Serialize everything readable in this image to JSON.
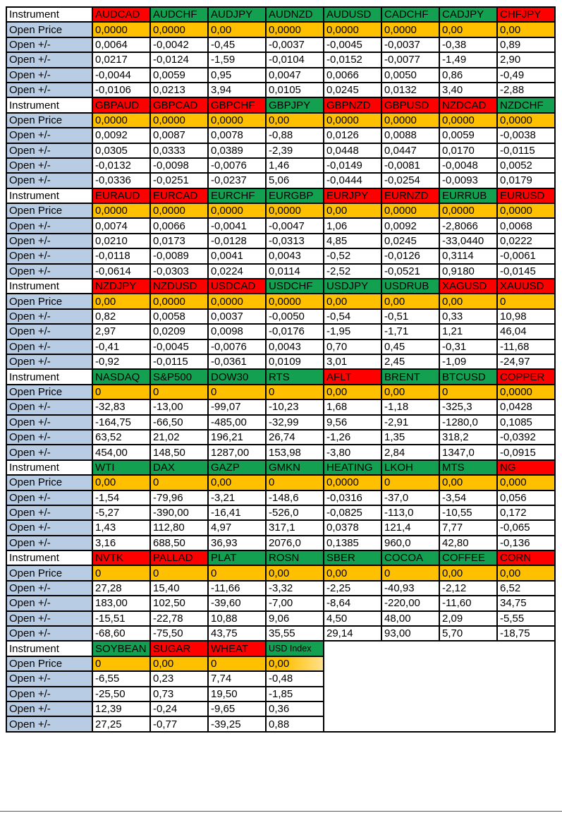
{
  "colors": {
    "red": "#FF0000",
    "green": "#13A051",
    "orange": "#FFC000",
    "orange_fade": "#FFE08A",
    "label_blue": "#B8CCE4",
    "grid": "#000000"
  },
  "row_labels": {
    "instrument": "Instrument",
    "open_price": "Open Price",
    "open_change": "Open +/-"
  },
  "table": {
    "blocks": [
      {
        "headers": [
          {
            "text": "AUDCAD",
            "color": "red"
          },
          {
            "text": "AUDCHF",
            "color": "green"
          },
          {
            "text": "AUDJPY",
            "color": "green"
          },
          {
            "text": "AUDNZD",
            "color": "green"
          },
          {
            "text": "AUDUSD",
            "color": "green"
          },
          {
            "text": "CADCHF",
            "color": "green"
          },
          {
            "text": "CADJPY",
            "color": "green"
          },
          {
            "text": "CHFJPY",
            "color": "red"
          }
        ],
        "open_price": [
          "0,0000",
          "0,0000",
          "0,00",
          "0,0000",
          "0,0000",
          "0,0000",
          "0,00",
          "0,00"
        ],
        "changes": [
          [
            "0,0064",
            "-0,0042",
            "-0,45",
            "-0,0037",
            "-0,0045",
            "-0,0037",
            "-0,38",
            "0,89"
          ],
          [
            "0,0217",
            "-0,0124",
            "-1,59",
            "-0,0104",
            "-0,0152",
            "-0,0077",
            "-1,49",
            "2,90"
          ],
          [
            "-0,0044",
            "0,0059",
            "0,95",
            "0,0047",
            "0,0066",
            "0,0050",
            "0,86",
            "-0,49"
          ],
          [
            "-0,0106",
            "0,0213",
            "3,94",
            "0,0105",
            "0,0245",
            "0,0132",
            "3,40",
            "-2,88"
          ]
        ]
      },
      {
        "headers": [
          {
            "text": "GBPAUD",
            "color": "red"
          },
          {
            "text": "GBPCAD",
            "color": "red"
          },
          {
            "text": "GBPCHF",
            "color": "red"
          },
          {
            "text": "GBPJPY",
            "color": "green"
          },
          {
            "text": "GBPNZD",
            "color": "red"
          },
          {
            "text": "GBPUSD",
            "color": "red"
          },
          {
            "text": "NZDCAD",
            "color": "red"
          },
          {
            "text": "NZDCHF",
            "color": "green"
          }
        ],
        "open_price": [
          "0,0000",
          "0,0000",
          "0,0000",
          "0,00",
          "0,0000",
          "0,0000",
          "0,0000",
          "0,0000"
        ],
        "changes": [
          [
            "0,0092",
            "0,0087",
            "0,0078",
            "-0,88",
            "0,0126",
            "0,0088",
            "0,0059",
            "-0,0038"
          ],
          [
            "0,0305",
            "0,0333",
            "0,0389",
            "-2,39",
            "0,0448",
            "0,0447",
            "0,0170",
            "-0,0115"
          ],
          [
            "-0,0132",
            "-0,0098",
            "-0,0076",
            "1,46",
            "-0,0149",
            "-0,0081",
            "-0,0048",
            "0,0052"
          ],
          [
            "-0,0336",
            "-0,0251",
            "-0,0237",
            "5,06",
            "-0,0444",
            "-0,0254",
            "-0,0093",
            "0,0179"
          ]
        ]
      },
      {
        "headers": [
          {
            "text": "EURAUD",
            "color": "red"
          },
          {
            "text": "EURCAD",
            "color": "red"
          },
          {
            "text": "EURCHF",
            "color": "green"
          },
          {
            "text": "EURGBP",
            "color": "green"
          },
          {
            "text": "EURJPY",
            "color": "red"
          },
          {
            "text": "EURNZD",
            "color": "red"
          },
          {
            "text": "EURRUB",
            "color": "green"
          },
          {
            "text": "EURUSD",
            "color": "red"
          }
        ],
        "open_price": [
          "0,0000",
          "0,0000",
          "0,0000",
          "0,0000",
          "0,00",
          "0,0000",
          "0,0000",
          "0,0000"
        ],
        "changes": [
          [
            "0,0074",
            "0,0066",
            "-0,0041",
            "-0,0047",
            "1,06",
            "0,0092",
            "-2,8066",
            "0,0068"
          ],
          [
            "0,0210",
            "0,0173",
            "-0,0128",
            "-0,0313",
            "4,85",
            "0,0245",
            "-33,0440",
            "0,0222"
          ],
          [
            "-0,0118",
            "-0,0089",
            "0,0041",
            "0,0043",
            "-0,52",
            "-0,0126",
            "0,3114",
            "-0,0061"
          ],
          [
            "-0,0614",
            "-0,0303",
            "0,0224",
            "0,0114",
            "-2,52",
            "-0,0521",
            "0,9180",
            "-0,0145"
          ]
        ]
      },
      {
        "headers": [
          {
            "text": "NZDJPY",
            "color": "red"
          },
          {
            "text": "NZDUSD",
            "color": "red"
          },
          {
            "text": "USDCAD",
            "color": "red"
          },
          {
            "text": "USDCHF",
            "color": "green"
          },
          {
            "text": "USDJPY",
            "color": "green"
          },
          {
            "text": "USDRUB",
            "color": "green"
          },
          {
            "text": "XAGUSD",
            "color": "red"
          },
          {
            "text": "XAUUSD",
            "color": "red"
          }
        ],
        "open_price": [
          "0,00",
          "0,0000",
          "0,0000",
          "0,0000",
          "0,00",
          "0,00",
          "0,00",
          "0"
        ],
        "changes": [
          [
            "0,82",
            "0,0058",
            "0,0037",
            "-0,0050",
            "-0,54",
            "-0,51",
            "0,33",
            "10,98"
          ],
          [
            "2,97",
            "0,0209",
            "0,0098",
            "-0,0176",
            "-1,95",
            "-1,71",
            "1,21",
            "46,04"
          ],
          [
            "-0,41",
            "-0,0045",
            "-0,0076",
            "0,0043",
            "0,70",
            "0,45",
            "-0,31",
            "-11,68"
          ],
          [
            "-0,92",
            "-0,0115",
            "-0,0361",
            "0,0109",
            "3,01",
            "2,45",
            "-1,09",
            "-24,97"
          ]
        ]
      },
      {
        "headers": [
          {
            "text": "NASDAQ",
            "color": "green"
          },
          {
            "text": "S&P500",
            "color": "green"
          },
          {
            "text": "DOW30",
            "color": "green"
          },
          {
            "text": "RTS",
            "color": "green"
          },
          {
            "text": "AFLT",
            "color": "red"
          },
          {
            "text": "BRENT",
            "color": "green"
          },
          {
            "text": "BTCUSD",
            "color": "green"
          },
          {
            "text": "COPPER",
            "color": "red"
          }
        ],
        "open_price": [
          "0",
          "0",
          "0",
          "0",
          "0,00",
          "0,00",
          "0",
          "0,0000"
        ],
        "changes": [
          [
            "-32,83",
            "-13,00",
            "-99,07",
            "-10,23",
            "1,68",
            "-1,18",
            "-325,3",
            "0,0428"
          ],
          [
            "-164,75",
            "-66,50",
            "-485,00",
            "-32,99",
            "9,56",
            "-2,91",
            "-1280,0",
            "0,1085"
          ],
          [
            "63,52",
            "21,02",
            "196,21",
            "26,74",
            "-1,26",
            "1,35",
            "318,2",
            "-0,0392"
          ],
          [
            "454,00",
            "148,50",
            "1287,00",
            "153,98",
            "-3,80",
            "2,84",
            "1347,0",
            "-0,0915"
          ]
        ]
      },
      {
        "headers": [
          {
            "text": "WTI",
            "color": "green"
          },
          {
            "text": "DAX",
            "color": "green"
          },
          {
            "text": "GAZP",
            "color": "green"
          },
          {
            "text": "GMKN",
            "color": "green"
          },
          {
            "text": "HEATING",
            "color": "green"
          },
          {
            "text": "LKOH",
            "color": "green"
          },
          {
            "text": "MTS",
            "color": "green"
          },
          {
            "text": "NG",
            "color": "red"
          }
        ],
        "open_price": [
          "0,00",
          "0",
          "0,00",
          "0",
          "0,0000",
          "0",
          "0,00",
          "0,000"
        ],
        "changes": [
          [
            "-1,54",
            "-79,96",
            "-3,21",
            "-148,6",
            "-0,0316",
            "-37,0",
            "-3,54",
            "0,056"
          ],
          [
            "-5,27",
            "-390,00",
            "-16,41",
            "-526,0",
            "-0,0825",
            "-113,0",
            "-10,55",
            "0,172"
          ],
          [
            "1,43",
            "112,80",
            "4,97",
            "317,1",
            "0,0378",
            "121,4",
            "7,77",
            "-0,065"
          ],
          [
            "3,16",
            "688,50",
            "36,93",
            "2076,0",
            "0,1385",
            "960,0",
            "42,80",
            "-0,136"
          ]
        ]
      },
      {
        "headers": [
          {
            "text": "NVTK",
            "color": "red"
          },
          {
            "text": "PALLAD",
            "color": "red"
          },
          {
            "text": "PLAT",
            "color": "green"
          },
          {
            "text": "ROSN",
            "color": "green"
          },
          {
            "text": "SBER",
            "color": "green"
          },
          {
            "text": "COCOA",
            "color": "green"
          },
          {
            "text": "COFFEE",
            "color": "green"
          },
          {
            "text": "CORN",
            "color": "red"
          }
        ],
        "open_price": [
          "0",
          "0",
          "0",
          "0,00",
          "0,00",
          "0",
          "0,00",
          "0,00"
        ],
        "changes": [
          [
            "27,28",
            "15,40",
            "-11,66",
            "-3,32",
            "-2,25",
            "-40,93",
            "-2,12",
            "6,52"
          ],
          [
            "183,00",
            "102,50",
            "-39,60",
            "-7,00",
            "-8,64",
            "-220,00",
            "-11,60",
            "34,75"
          ],
          [
            "-15,51",
            "-22,78",
            "10,88",
            "9,06",
            "4,50",
            "48,00",
            "2,09",
            "-5,55"
          ],
          [
            "-68,60",
            "-75,50",
            "43,75",
            "35,55",
            "29,14",
            "93,00",
            "5,70",
            "-18,75"
          ]
        ]
      },
      {
        "headers": [
          {
            "text": "SOYBEAN",
            "color": "green"
          },
          {
            "text": "SUGAR",
            "color": "red"
          },
          {
            "text": "WHEAT",
            "color": "red"
          },
          {
            "text": "USD Index",
            "color": "green",
            "small": true
          }
        ],
        "open_price": [
          "0",
          "0,00",
          "0",
          "0,00"
        ],
        "open_price_gradient_col": 3,
        "changes": [
          [
            "-6,55",
            "0,23",
            "7,74",
            "-0,48"
          ],
          [
            "-25,50",
            "0,73",
            "19,50",
            "-1,85"
          ],
          [
            "12,39",
            "-0,24",
            "-9,65",
            "0,36"
          ],
          [
            "27,25",
            "-0,77",
            "-39,25",
            "0,88"
          ]
        ]
      }
    ]
  }
}
